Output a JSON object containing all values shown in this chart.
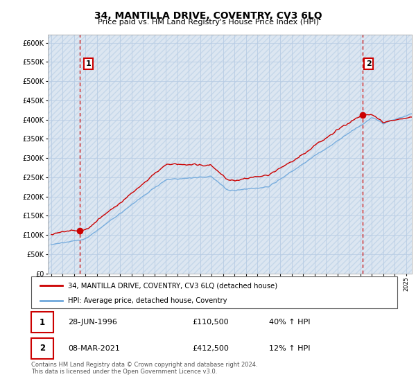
{
  "title": "34, MANTILLA DRIVE, COVENTRY, CV3 6LQ",
  "subtitle": "Price paid vs. HM Land Registry's House Price Index (HPI)",
  "ylim": [
    0,
    620000
  ],
  "yticks": [
    0,
    50000,
    100000,
    150000,
    200000,
    250000,
    300000,
    350000,
    400000,
    450000,
    500000,
    550000,
    600000
  ],
  "sale1_year": 1996.49,
  "sale1_price": 110500,
  "sale1_label": "1",
  "sale2_year": 2021.18,
  "sale2_price": 412500,
  "sale2_label": "2",
  "legend_line1": "34, MANTILLA DRIVE, COVENTRY, CV3 6LQ (detached house)",
  "legend_line2": "HPI: Average price, detached house, Coventry",
  "table_row1": [
    "1",
    "28-JUN-1996",
    "£110,500",
    "40% ↑ HPI"
  ],
  "table_row2": [
    "2",
    "08-MAR-2021",
    "£412,500",
    "12% ↑ HPI"
  ],
  "footer": "Contains HM Land Registry data © Crown copyright and database right 2024.\nThis data is licensed under the Open Government Licence v3.0.",
  "hpi_color": "#6fa8dc",
  "price_color": "#cc0000",
  "bg_color": "#dce6f1",
  "grid_color": "#b8cce4",
  "hatch_color": "#c0d4e8"
}
